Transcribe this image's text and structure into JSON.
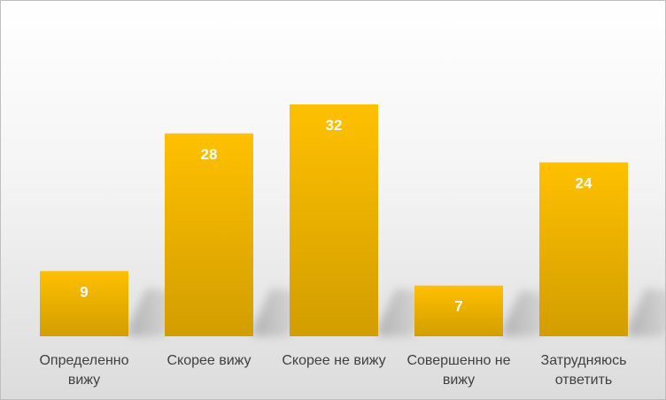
{
  "chart_data": {
    "type": "bar",
    "categories": [
      [
        "Определенно",
        "вижу"
      ],
      [
        "Скорее вижу"
      ],
      [
        "Скорее не вижу"
      ],
      [
        "Совершенно не",
        "вижу"
      ],
      [
        "Затрудняюсь",
        "ответить"
      ]
    ],
    "values": [
      9,
      28,
      32,
      7,
      24
    ],
    "title": "",
    "xlabel": "",
    "ylabel": "",
    "ylim": [
      0,
      35
    ],
    "grid": false,
    "legend": "none",
    "data_labels": "inside-top",
    "colors": {
      "bar_top": "#ffc000",
      "bar_bottom": "#d29e00",
      "data_label": "#ffffff",
      "category_label": "#404040",
      "border": "#bfbfbf"
    }
  }
}
